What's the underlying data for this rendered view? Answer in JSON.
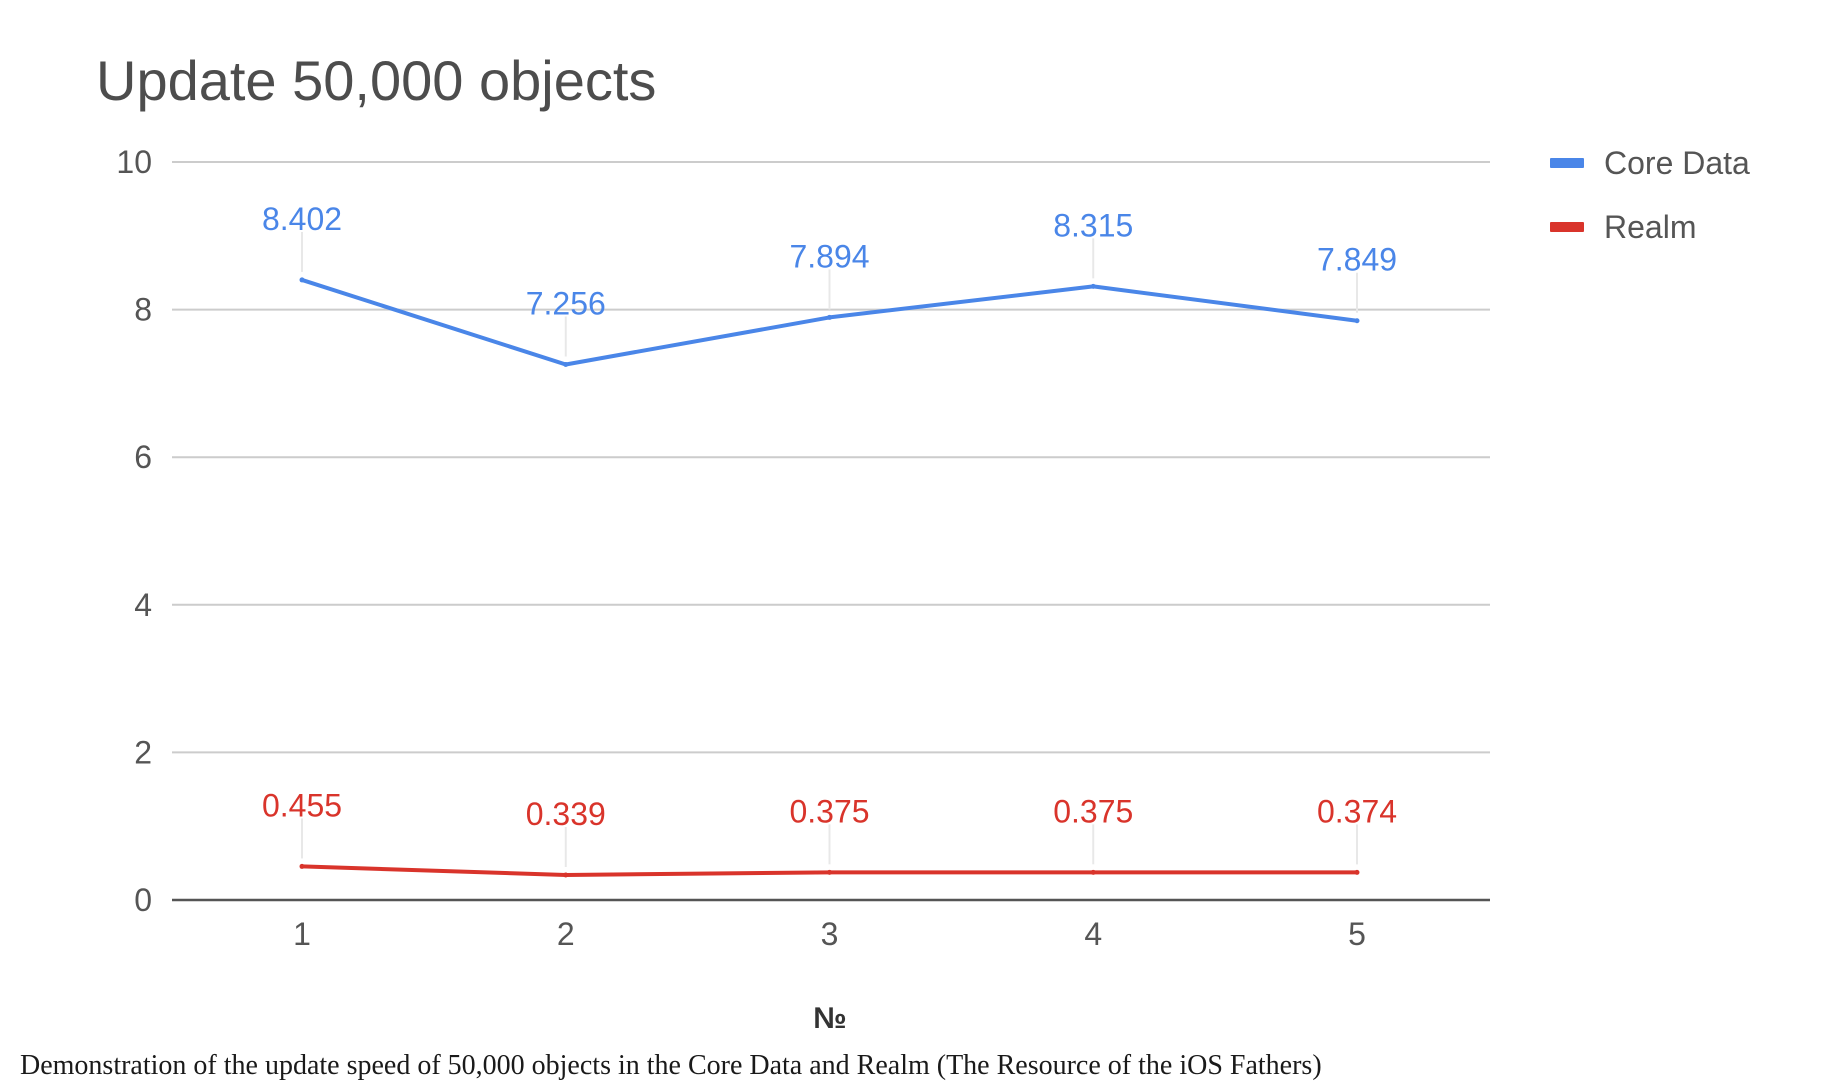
{
  "chart_data": {
    "type": "line",
    "title": "Update 50,000 objects",
    "xlabel": "№",
    "ylabel": "",
    "categories": [
      "1",
      "2",
      "3",
      "4",
      "5"
    ],
    "ylim": [
      0,
      10
    ],
    "yticks": [
      0,
      2,
      4,
      6,
      8,
      10
    ],
    "grid": true,
    "legend_position": "right",
    "series": [
      {
        "name": "Core Data",
        "color": "#4a86e8",
        "values": [
          8.402,
          7.256,
          7.894,
          8.315,
          7.849
        ],
        "labels": [
          "8.402",
          "7.256",
          "7.894",
          "8.315",
          "7.849"
        ]
      },
      {
        "name": "Realm",
        "color": "#d9342b",
        "values": [
          0.455,
          0.339,
          0.375,
          0.375,
          0.374
        ],
        "labels": [
          "0.455",
          "0.339",
          "0.375",
          "0.375",
          "0.374"
        ]
      }
    ]
  },
  "caption": "Demonstration of the update speed of 50,000 objects in the Core Data and Realm (The Resource of the iOS Fathers)"
}
